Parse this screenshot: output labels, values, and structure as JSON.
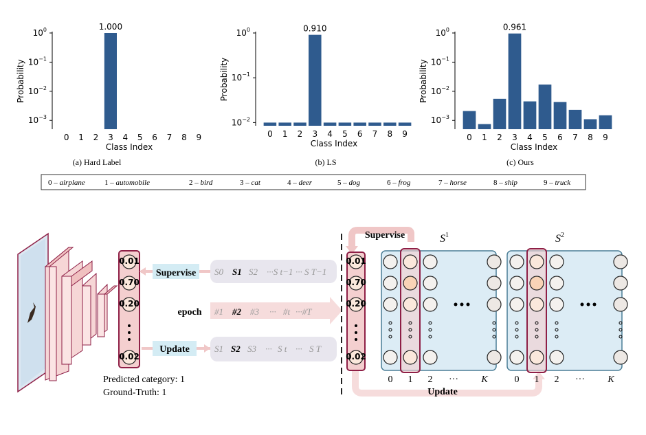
{
  "chart_data": [
    {
      "type": "bar",
      "categories": [
        "0",
        "1",
        "2",
        "3",
        "4",
        "5",
        "6",
        "7",
        "8",
        "9"
      ],
      "values": [
        0,
        0,
        0,
        1.0,
        0,
        0,
        0,
        0,
        0,
        0
      ],
      "yscale": "log",
      "ylim": [
        0.0005,
        1
      ],
      "yticks": [
        "10^0",
        "10^-1",
        "10^-2",
        "10^-3"
      ],
      "xlabel": "Class Index",
      "ylabel": "Probability",
      "peak_label": "1.000",
      "caption": "(a)  Hard Label",
      "color": "#2f5b8e"
    },
    {
      "type": "bar",
      "categories": [
        "0",
        "1",
        "2",
        "3",
        "4",
        "5",
        "6",
        "7",
        "8",
        "9"
      ],
      "values": [
        0.01,
        0.01,
        0.01,
        0.91,
        0.01,
        0.01,
        0.01,
        0.01,
        0.01,
        0.01
      ],
      "yscale": "log",
      "ylim": [
        0.0085,
        1
      ],
      "yticks": [
        "10^0",
        "10^-1",
        "10^-2"
      ],
      "xlabel": "Class Index",
      "ylabel": "Probability",
      "peak_label": "0.910",
      "caption": "(b)  LS",
      "color": "#2f5b8e"
    },
    {
      "type": "bar",
      "categories": [
        "0",
        "1",
        "2",
        "3",
        "4",
        "5",
        "6",
        "7",
        "8",
        "9"
      ],
      "values": [
        0.0021,
        0.00075,
        0.0055,
        0.961,
        0.0045,
        0.017,
        0.0043,
        0.0023,
        0.0011,
        0.0015
      ],
      "yscale": "log",
      "ylim": [
        0.0005,
        1
      ],
      "yticks": [
        "10^0",
        "10^-1",
        "10^-2",
        "10^-3"
      ],
      "xlabel": "Class Index",
      "ylabel": "Probability",
      "peak_label": "0.961",
      "caption": "(c)  Ours",
      "color": "#2f5b8e"
    }
  ],
  "legend": {
    "entries": [
      {
        "index": "0",
        "name": "airplane"
      },
      {
        "index": "1",
        "name": "automobile"
      },
      {
        "index": "2",
        "name": "bird"
      },
      {
        "index": "3",
        "name": "cat"
      },
      {
        "index": "4",
        "name": "deer"
      },
      {
        "index": "5",
        "name": "dog"
      },
      {
        "index": "6",
        "name": "frog"
      },
      {
        "index": "7",
        "name": "horse"
      },
      {
        "index": "8",
        "name": "ship"
      },
      {
        "index": "9",
        "name": "truck"
      }
    ]
  },
  "diagram": {
    "prob_values": [
      "0.01",
      "0.70",
      "0.20",
      "0.02"
    ],
    "supervise_label": "Supervise",
    "epoch_label": "epoch",
    "update_label": "Update",
    "predicted_text": "Predicted category: 1",
    "groundtruth_text": "Ground-Truth: 1",
    "s_sequence_top": [
      "S0",
      "S1",
      "S2",
      "···S t−1",
      "··· S T−1"
    ],
    "epoch_sequence": [
      "#1",
      "#2",
      "#3",
      "···",
      "#t",
      "···#T"
    ],
    "s_sequence_bottom": [
      "S1",
      "S2",
      "S3",
      "···",
      "S t",
      "···",
      "S T"
    ],
    "right_supervise_label": "Supervise",
    "right_update_label": "Update",
    "matrix1_title": "S",
    "matrix1_sup": "1",
    "matrix2_title": "S",
    "matrix2_sup": "2",
    "column_labels": [
      "0",
      "1",
      "2",
      "···",
      "K"
    ],
    "colors": {
      "bar": "#2f5b8e",
      "pink_border": "#8e1f46",
      "pink_fill": "#f4cfcf",
      "blue_panel": "#dcecf5",
      "blue_border": "#4a7d95",
      "arrow": "#f0c7c7",
      "gray_box": "#e8e6ee"
    }
  }
}
